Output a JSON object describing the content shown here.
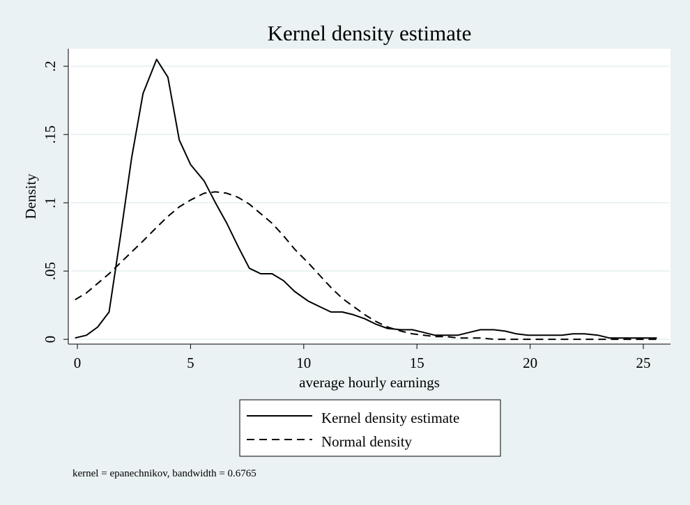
{
  "chart_data": {
    "type": "line",
    "title": "Kernel density estimate",
    "xlabel": "average hourly earnings",
    "ylabel": "Density",
    "note": "kernel = epanechnikov, bandwidth = 0.6765",
    "xlim": [
      -0.4,
      26.2
    ],
    "ylim": [
      -0.0035,
      0.2128
    ],
    "x_ticks": [
      {
        "value": 0,
        "label": "0"
      },
      {
        "value": 5,
        "label": "5"
      },
      {
        "value": 10,
        "label": "10"
      },
      {
        "value": 15,
        "label": "15"
      },
      {
        "value": 20,
        "label": "20"
      },
      {
        "value": 25,
        "label": "25"
      }
    ],
    "y_ticks": [
      {
        "value": 0,
        "label": "0"
      },
      {
        "value": 0.05,
        "label": ".05"
      },
      {
        "value": 0.1,
        "label": ".1"
      },
      {
        "value": 0.15,
        "label": ".15"
      },
      {
        "value": 0.2,
        "label": ".2"
      }
    ],
    "grid": true,
    "legend_position": "bottom",
    "colors": {
      "background": "#eaf2f3",
      "plot_area": "#ffffff",
      "gridline": "#eaf2f3",
      "series_line": "#000000"
    },
    "series": [
      {
        "name": "Kernel density estimate",
        "style": "solid",
        "points": [
          [
            -0.1,
            0.001
          ],
          [
            0.4,
            0.003
          ],
          [
            0.9,
            0.009
          ],
          [
            1.4,
            0.02
          ],
          [
            1.9,
            0.075
          ],
          [
            2.4,
            0.133
          ],
          [
            2.9,
            0.18
          ],
          [
            3.5,
            0.205
          ],
          [
            4.0,
            0.192
          ],
          [
            4.5,
            0.146
          ],
          [
            5.0,
            0.128
          ],
          [
            5.6,
            0.116
          ],
          [
            6.1,
            0.1
          ],
          [
            6.6,
            0.085
          ],
          [
            7.1,
            0.068
          ],
          [
            7.6,
            0.052
          ],
          [
            8.1,
            0.048
          ],
          [
            8.6,
            0.048
          ],
          [
            9.1,
            0.043
          ],
          [
            9.6,
            0.035
          ],
          [
            10.2,
            0.028
          ],
          [
            10.7,
            0.024
          ],
          [
            11.2,
            0.02
          ],
          [
            11.7,
            0.02
          ],
          [
            12.2,
            0.018
          ],
          [
            12.7,
            0.015
          ],
          [
            13.2,
            0.011
          ],
          [
            13.7,
            0.008
          ],
          [
            14.3,
            0.007
          ],
          [
            14.8,
            0.007
          ],
          [
            15.3,
            0.005
          ],
          [
            15.8,
            0.003
          ],
          [
            16.3,
            0.003
          ],
          [
            16.8,
            0.003
          ],
          [
            17.3,
            0.005
          ],
          [
            17.8,
            0.007
          ],
          [
            18.4,
            0.007
          ],
          [
            18.9,
            0.006
          ],
          [
            19.4,
            0.004
          ],
          [
            19.9,
            0.003
          ],
          [
            20.4,
            0.003
          ],
          [
            20.9,
            0.003
          ],
          [
            21.4,
            0.003
          ],
          [
            21.9,
            0.004
          ],
          [
            22.4,
            0.004
          ],
          [
            23.0,
            0.003
          ],
          [
            23.5,
            0.001
          ],
          [
            24.0,
            0.001
          ],
          [
            24.5,
            0.001
          ],
          [
            25.0,
            0.001
          ],
          [
            25.6,
            0.001
          ]
        ]
      },
      {
        "name": "Normal density",
        "style": "dashed",
        "points": [
          [
            -0.1,
            0.029
          ],
          [
            0.4,
            0.034
          ],
          [
            0.9,
            0.041
          ],
          [
            1.4,
            0.048
          ],
          [
            1.9,
            0.056
          ],
          [
            2.4,
            0.064
          ],
          [
            2.9,
            0.072
          ],
          [
            3.5,
            0.082
          ],
          [
            4.0,
            0.09
          ],
          [
            4.5,
            0.097
          ],
          [
            5.0,
            0.102
          ],
          [
            5.6,
            0.107
          ],
          [
            6.1,
            0.108
          ],
          [
            6.6,
            0.107
          ],
          [
            7.1,
            0.104
          ],
          [
            7.6,
            0.099
          ],
          [
            8.1,
            0.092
          ],
          [
            8.6,
            0.085
          ],
          [
            9.1,
            0.076
          ],
          [
            9.6,
            0.066
          ],
          [
            10.2,
            0.056
          ],
          [
            10.7,
            0.047
          ],
          [
            11.2,
            0.038
          ],
          [
            11.7,
            0.03
          ],
          [
            12.2,
            0.024
          ],
          [
            12.7,
            0.018
          ],
          [
            13.2,
            0.013
          ],
          [
            13.7,
            0.009
          ],
          [
            14.3,
            0.006
          ],
          [
            14.8,
            0.004
          ],
          [
            15.3,
            0.003
          ],
          [
            15.8,
            0.002
          ],
          [
            16.3,
            0.002
          ],
          [
            16.8,
            0.001
          ],
          [
            17.3,
            0.001
          ],
          [
            17.8,
            0.001
          ],
          [
            18.4,
            0.0
          ],
          [
            18.9,
            0.0
          ],
          [
            19.4,
            0.0
          ],
          [
            19.9,
            0.0
          ],
          [
            20.4,
            0.0
          ],
          [
            20.9,
            0.0
          ],
          [
            21.4,
            0.0
          ],
          [
            21.9,
            0.0
          ],
          [
            22.4,
            0.0
          ],
          [
            23.0,
            0.0
          ],
          [
            23.5,
            0.0
          ],
          [
            24.0,
            0.0
          ],
          [
            24.5,
            0.0
          ],
          [
            25.0,
            0.0
          ],
          [
            25.6,
            0.0
          ]
        ]
      }
    ]
  }
}
